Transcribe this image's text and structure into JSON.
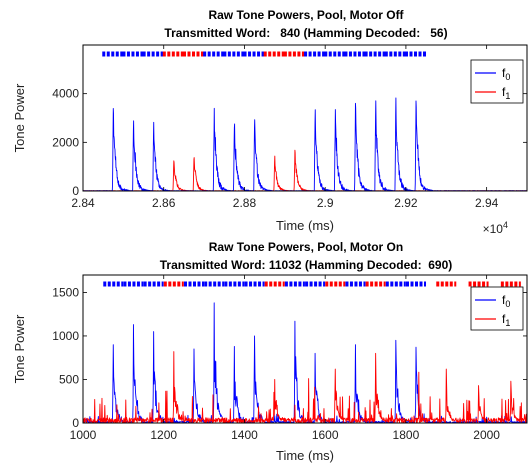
{
  "chart_data": [
    {
      "type": "line",
      "title": "Raw Tone Powers, Pool, Motor Off",
      "subtitle": "Transmitted Word:   840 (Hamming Decoded:   56)",
      "xlabel": "Time (ms)",
      "ylabel": "Tone Power",
      "x_exponent_label": "×10",
      "x_exponent": "4",
      "xlim": [
        28400,
        29500
      ],
      "ylim": [
        0,
        6000
      ],
      "xticks": [
        28400,
        28600,
        28800,
        29000,
        29200,
        29400
      ],
      "xtick_labels": [
        "2.84",
        "2.86",
        "2.88",
        "2.9",
        "2.92",
        "2.94"
      ],
      "yticks": [
        0,
        2000,
        4000
      ],
      "ytick_labels": [
        "0",
        "2000",
        "4000"
      ],
      "legend": {
        "position": "top-right",
        "entries": [
          "f",
          "f"
        ],
        "subscripts": [
          "0",
          "1"
        ]
      },
      "series": [
        {
          "name": "f0",
          "color": "#0000ff",
          "pulses": [
            {
              "t": 28475,
              "peak": 3650
            },
            {
              "t": 28525,
              "peak": 3150
            },
            {
              "t": 28575,
              "peak": 2950
            },
            {
              "t": 28725,
              "peak": 3550
            },
            {
              "t": 28775,
              "peak": 3150
            },
            {
              "t": 28825,
              "peak": 3200
            },
            {
              "t": 28975,
              "peak": 3650
            },
            {
              "t": 29025,
              "peak": 3500
            },
            {
              "t": 29075,
              "peak": 3900
            },
            {
              "t": 29125,
              "peak": 4050
            },
            {
              "t": 29175,
              "peak": 4000
            },
            {
              "t": 29225,
              "peak": 3950
            }
          ]
        },
        {
          "name": "f1",
          "color": "#ff0000",
          "pulses": [
            {
              "t": 28625,
              "peak": 1350
            },
            {
              "t": 28675,
              "peak": 1500
            },
            {
              "t": 28875,
              "peak": 1500
            },
            {
              "t": 28925,
              "peak": 1800
            }
          ]
        }
      ],
      "bit_markers": [
        "0",
        "0",
        "0",
        "1",
        "1",
        "0",
        "0",
        "0",
        "1",
        "1",
        "0",
        "0",
        "0",
        "0",
        "0",
        "0"
      ]
    },
    {
      "type": "line",
      "title": "Raw Tone Powers, Pool, Motor On",
      "subtitle": "Transmitted Word: 11032 (Hamming Decoded:  690)",
      "xlabel": "Time (ms)",
      "ylabel": "Tone Power",
      "xlim": [
        1000,
        2100
      ],
      "ylim": [
        0,
        1700
      ],
      "xticks": [
        1000,
        1200,
        1400,
        1600,
        1800,
        2000
      ],
      "xtick_labels": [
        "1000",
        "1200",
        "1400",
        "1600",
        "1800",
        "2000"
      ],
      "yticks": [
        0,
        500,
        1000,
        1500
      ],
      "ytick_labels": [
        "0",
        "500",
        "1000",
        "1500"
      ],
      "legend": {
        "position": "top-right",
        "entries": [
          "f",
          "f"
        ],
        "subscripts": [
          "0",
          "1"
        ]
      },
      "series": [
        {
          "name": "f0",
          "color": "#0000ff",
          "pulses": [
            {
              "t": 1075,
              "peak": 900
            },
            {
              "t": 1125,
              "peak": 1130
            },
            {
              "t": 1175,
              "peak": 1050
            },
            {
              "t": 1275,
              "peak": 850
            },
            {
              "t": 1325,
              "peak": 1380
            },
            {
              "t": 1375,
              "peak": 880
            },
            {
              "t": 1425,
              "peak": 1000
            },
            {
              "t": 1525,
              "peak": 1170
            },
            {
              "t": 1575,
              "peak": 800
            },
            {
              "t": 1675,
              "peak": 900
            },
            {
              "t": 1775,
              "peak": 950
            },
            {
              "t": 1825,
              "peak": 870
            }
          ]
        },
        {
          "name": "f1",
          "color": "#ff0000",
          "pulses": [
            {
              "t": 1225,
              "peak": 820
            },
            {
              "t": 1475,
              "peak": 500
            },
            {
              "t": 1625,
              "peak": 620
            },
            {
              "t": 1725,
              "peak": 800
            },
            {
              "t": 1900,
              "peak": 620
            },
            {
              "t": 1980,
              "peak": 430
            },
            {
              "t": 2060,
              "peak": 480
            }
          ]
        }
      ],
      "bit_markers": [
        "0",
        "0",
        "0",
        "1",
        "1",
        "0",
        "0",
        "0",
        "1",
        "1",
        "0",
        "1",
        "0",
        "1",
        "0",
        "0",
        "0"
      ]
    }
  ]
}
